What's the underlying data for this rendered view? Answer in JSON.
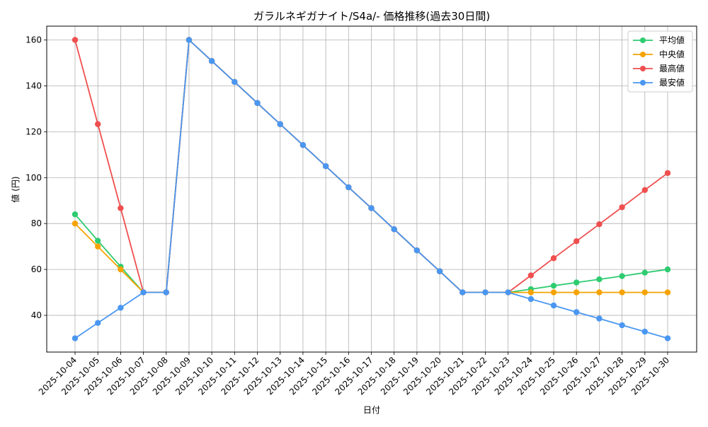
{
  "chart_data": {
    "type": "line",
    "title": "ガラルネギガナイト/S4a/- 価格推移(過去30日間)",
    "xlabel": "日付",
    "ylabel": "値 (円)",
    "ylim": [
      24,
      166
    ],
    "yticks": [
      40,
      60,
      80,
      100,
      120,
      140,
      160
    ],
    "grid": true,
    "legend_position": "top-right",
    "categories": [
      "2025-10-04",
      "2025-10-05",
      "2025-10-06",
      "2025-10-07",
      "2025-10-08",
      "2025-10-09",
      "2025-10-10",
      "2025-10-11",
      "2025-10-12",
      "2025-10-13",
      "2025-10-14",
      "2025-10-15",
      "2025-10-16",
      "2025-10-17",
      "2025-10-18",
      "2025-10-19",
      "2025-10-20",
      "2025-10-21",
      "2025-10-22",
      "2025-10-23",
      "2025-10-24",
      "2025-10-25",
      "2025-10-26",
      "2025-10-27",
      "2025-10-28",
      "2025-10-29",
      "2025-10-30"
    ],
    "series": [
      {
        "name": "平均値",
        "color": "#2ecc71",
        "values": [
          84,
          72.5,
          61.2,
          50,
          50,
          160,
          150.8,
          141.7,
          132.5,
          123.3,
          114.2,
          105,
          95.8,
          86.7,
          77.5,
          68.3,
          59.2,
          50,
          50,
          50,
          51.4,
          52.9,
          54.3,
          55.7,
          57.1,
          58.6,
          60
        ]
      },
      {
        "name": "中央値",
        "color": "#f5a300",
        "values": [
          80,
          70,
          60,
          50,
          50,
          160,
          150.8,
          141.7,
          132.5,
          123.3,
          114.2,
          105,
          95.8,
          86.7,
          77.5,
          68.3,
          59.2,
          50,
          50,
          50,
          50,
          50,
          50,
          50,
          50,
          50,
          50
        ]
      },
      {
        "name": "最高値",
        "color": "#ef4f4f",
        "values": [
          160,
          123.3,
          86.7,
          50,
          50,
          160,
          150.8,
          141.7,
          132.5,
          123.3,
          114.2,
          105,
          95.8,
          86.7,
          77.5,
          68.3,
          59.2,
          50,
          50,
          50,
          57.4,
          64.9,
          72.3,
          79.7,
          87.1,
          94.6,
          102
        ]
      },
      {
        "name": "最安値",
        "color": "#4a97f2",
        "values": [
          30,
          36.7,
          43.3,
          50,
          50,
          160,
          150.8,
          141.7,
          132.5,
          123.3,
          114.2,
          105,
          95.8,
          86.7,
          77.5,
          68.3,
          59.2,
          50,
          50,
          50,
          47.1,
          44.3,
          41.4,
          38.6,
          35.7,
          32.9,
          30
        ]
      }
    ]
  }
}
